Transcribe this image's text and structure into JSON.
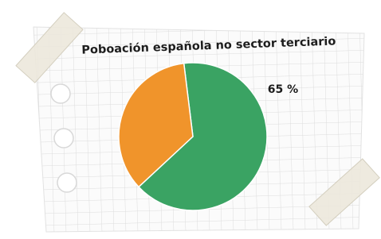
{
  "chart_data": {
    "type": "pie",
    "title": "Poboación española no sector terciario",
    "categories": [
      null,
      null
    ],
    "values": [
      65,
      35
    ],
    "value_labels": [
      "65 %",
      null
    ],
    "colors": [
      "#3aa363",
      "#f0942b"
    ],
    "start_angle": -7
  }
}
